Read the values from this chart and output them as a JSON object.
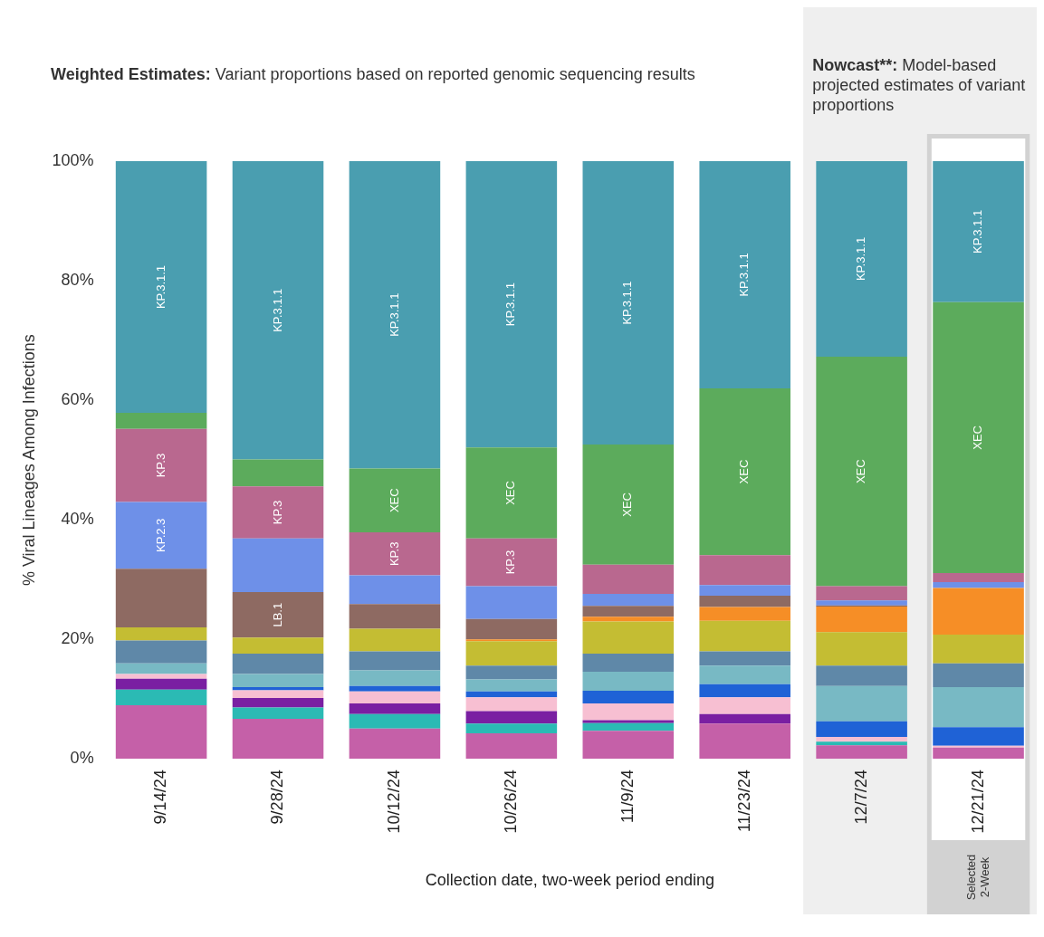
{
  "chart_data": {
    "type": "bar",
    "stacked": true,
    "title": "Weighted Estimates:",
    "subtitle": "Variant proportions based on reported genomic sequencing results",
    "xlabel": "Collection date, two-week period ending",
    "ylabel": "% Viral Lineages Among Infections",
    "categories": [
      "9/14/24",
      "9/28/24",
      "10/12/24",
      "10/26/24",
      "11/9/24",
      "11/23/24",
      "12/7/24",
      "12/21/24"
    ],
    "ylim": [
      0,
      100
    ],
    "yticks": [
      {
        "value": 0,
        "label": "0%"
      },
      {
        "value": 20,
        "label": "20%"
      },
      {
        "value": 40,
        "label": "40%"
      },
      {
        "value": 60,
        "label": "60%"
      },
      {
        "value": 80,
        "label": "80%"
      },
      {
        "value": 100,
        "label": "100%"
      }
    ],
    "grid": false,
    "legend": false,
    "bands": [
      {
        "axis": "x",
        "from": "12/7/24",
        "to": "12/21/24",
        "label": "Nowcast**: Model-based projected estimates of variant proportions",
        "color": "#efefef"
      },
      {
        "axis": "x",
        "from": "12/21/24",
        "to": "12/21/24",
        "label": "Selected 2-Week",
        "color": "#d2d2d2"
      }
    ],
    "series": [
      {
        "color": "#c560a8",
        "values": [
          9.0,
          6.7,
          5.1,
          4.3,
          4.7,
          5.9,
          2.3,
          1.9
        ]
      },
      {
        "color": "#2bbab4",
        "values": [
          2.6,
          1.9,
          2.4,
          1.6,
          1.3,
          0,
          0.6,
          0
        ]
      },
      {
        "color": "#7a1fa2",
        "values": [
          1.8,
          1.6,
          1.8,
          2.1,
          0.5,
          1.6,
          0,
          0
        ]
      },
      {
        "color": "#f7bfd2",
        "values": [
          0.8,
          1.3,
          2.0,
          2.3,
          2.8,
          2.8,
          0.8,
          0.3
        ]
      },
      {
        "color": "#1f62d6",
        "values": [
          0,
          0.5,
          0.9,
          1.0,
          2.1,
          2.2,
          2.6,
          3.1
        ]
      },
      {
        "color": "#78b9c4",
        "values": [
          1.8,
          2.2,
          2.6,
          2.0,
          3.2,
          3.1,
          5.9,
          6.7
        ]
      },
      {
        "color": "#5f88a8",
        "values": [
          3.8,
          3.4,
          3.2,
          2.3,
          3.0,
          2.4,
          3.4,
          4.0
        ]
      },
      {
        "color": "#c4bd33",
        "values": [
          2.2,
          2.7,
          3.8,
          4.1,
          5.4,
          5.1,
          5.6,
          4.8
        ]
      },
      {
        "color": "#f68e26",
        "values": [
          0,
          0,
          0,
          0.3,
          0.8,
          2.3,
          4.3,
          7.8
        ]
      },
      {
        "color": "#8e6a62",
        "values": [
          9.8,
          7.6,
          4.1,
          3.4,
          1.8,
          1.9,
          0.2,
          0
        ],
        "value_labels": [
          null,
          "LB.1",
          null,
          null,
          null,
          null,
          null,
          null
        ]
      },
      {
        "color": "#6e90e8",
        "values": [
          11.2,
          9.0,
          4.8,
          5.5,
          2.0,
          1.8,
          0.8,
          1.0
        ],
        "value_labels": [
          "KP.2.3",
          null,
          null,
          null,
          null,
          null,
          null,
          null
        ]
      },
      {
        "color": "#b9688f",
        "values": [
          12.2,
          8.7,
          7.2,
          8.0,
          4.9,
          5.0,
          2.4,
          1.5
        ],
        "value_labels": [
          "KP.3",
          "KP.3",
          "KP.3",
          "KP.3",
          null,
          null,
          null,
          null
        ]
      },
      {
        "color": "#5cab5c",
        "values": [
          2.7,
          4.5,
          10.7,
          15.2,
          20.1,
          27.9,
          38.4,
          45.3
        ],
        "value_labels": [
          null,
          null,
          "XEC",
          "XEC",
          "XEC",
          "XEC",
          "XEC",
          "XEC"
        ]
      },
      {
        "color": "#4a9eb0",
        "values": [
          42.1,
          49.9,
          51.4,
          47.9,
          47.4,
          38.0,
          32.7,
          23.6
        ],
        "value_labels": [
          "KP.3.1.1",
          "KP.3.1.1",
          "KP.3.1.1",
          "KP.3.1.1",
          "KP.3.1.1",
          "KP.3.1.1",
          "KP.3.1.1",
          "KP.3.1.1"
        ]
      }
    ]
  }
}
